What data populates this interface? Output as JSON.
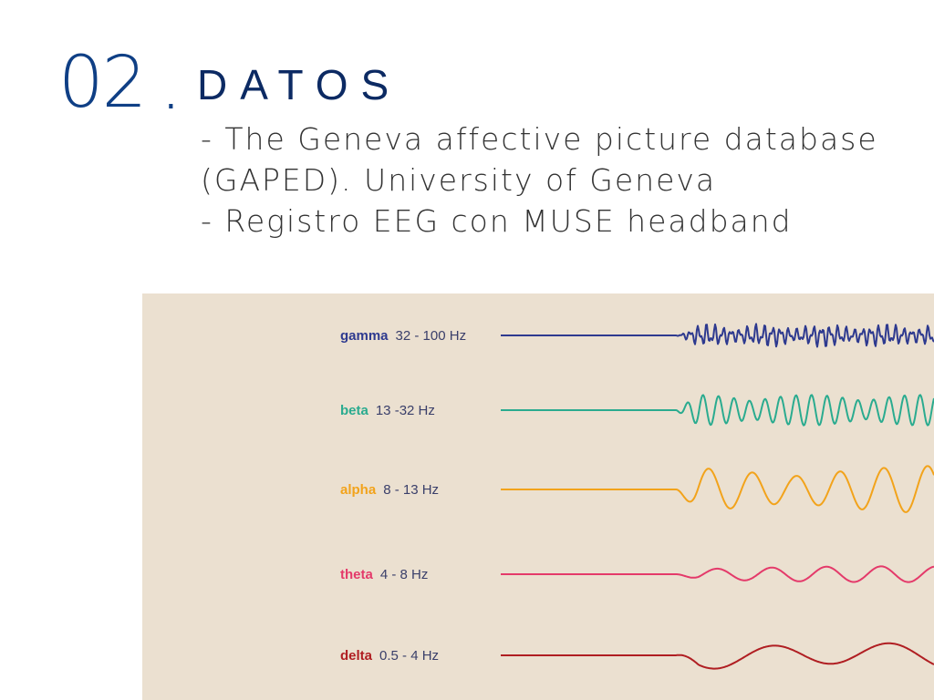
{
  "slide": {
    "number": "02",
    "dot": ".",
    "title": "DATOS",
    "lines": [
      " - The Geneva affective picture database",
      "(GAPED). University of Geneva",
      " - Registro EEG con MUSE headband"
    ]
  },
  "eeg_bands": [
    {
      "name": "gamma",
      "range": "32 - 100 Hz",
      "color": "#2e3a8f"
    },
    {
      "name": "beta",
      "range": "13 -32 Hz",
      "color": "#2aab8f"
    },
    {
      "name": "alpha",
      "range": "8 - 13 Hz",
      "color": "#f2a31b"
    },
    {
      "name": "theta",
      "range": "4 - 8 Hz",
      "color": "#e43a6a"
    },
    {
      "name": "delta",
      "range": "0.5 - 4 Hz",
      "color": "#b01e22"
    }
  ],
  "colors": {
    "accent": "#0f3f85",
    "title": "#0c2a63",
    "text": "#333333",
    "panel_background": "#ebe0d0"
  }
}
